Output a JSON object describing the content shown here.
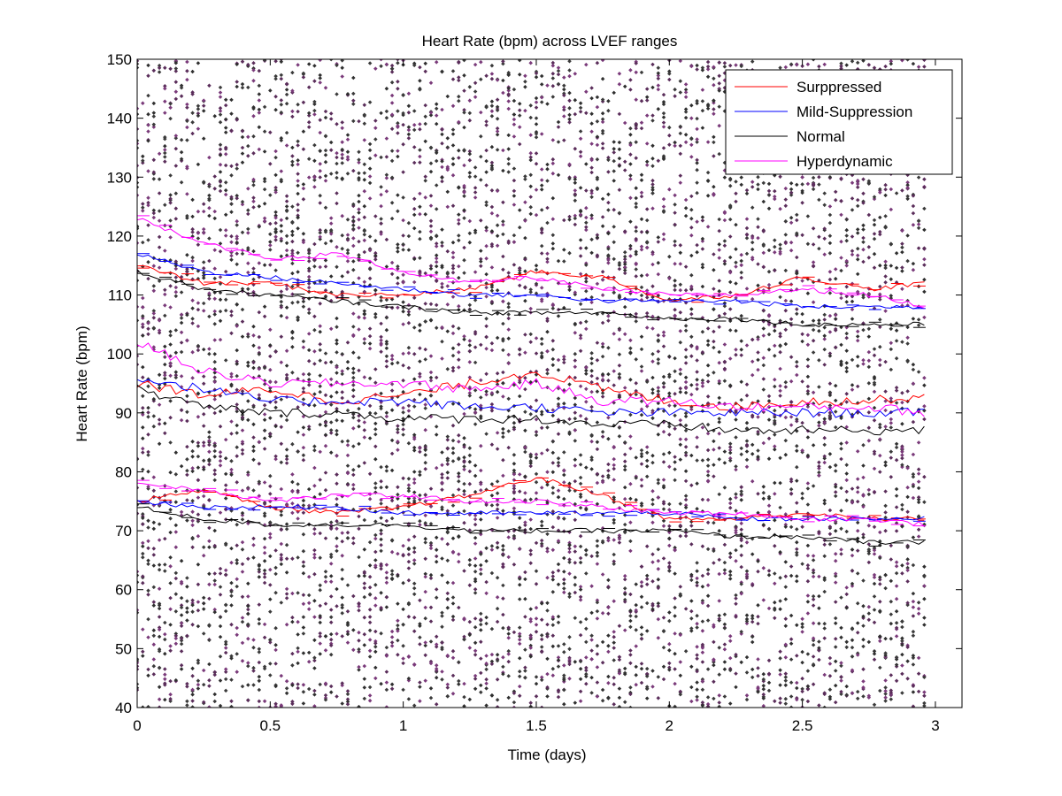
{
  "chart_data": {
    "type": "line",
    "title": "Heart Rate (bpm) across LVEF ranges",
    "xlabel": "Time (days)",
    "ylabel": "Heart Rate (bpm)",
    "xlim": [
      0,
      3.1
    ],
    "ylim": [
      40,
      150
    ],
    "xticks": [
      0,
      0.5,
      1,
      1.5,
      2,
      2.5,
      3
    ],
    "xtick_labels": [
      "0",
      "0.5",
      "1",
      "1.5",
      "2",
      "2.5",
      "3"
    ],
    "yticks": [
      40,
      50,
      60,
      70,
      80,
      90,
      100,
      110,
      120,
      130,
      140,
      150
    ],
    "ytick_labels": [
      "40",
      "50",
      "60",
      "70",
      "80",
      "90",
      "100",
      "110",
      "120",
      "130",
      "140",
      "150"
    ],
    "legend_position": "top-right",
    "grid": false,
    "x": [
      0,
      0.25,
      0.5,
      0.75,
      1,
      1.25,
      1.5,
      1.75,
      2,
      2.25,
      2.5,
      2.75,
      2.97
    ],
    "series": [
      {
        "name": "Surppressed",
        "color": "#ff0000",
        "upper": [
          115,
          112,
          112,
          110,
          110,
          111,
          114,
          113,
          109,
          110,
          113,
          111,
          112
        ],
        "median": [
          95,
          93,
          94,
          92,
          93,
          95,
          97,
          94,
          92,
          91,
          92,
          92,
          93
        ],
        "lower": [
          75,
          77,
          74,
          73,
          74,
          76,
          79,
          76,
          72,
          72,
          73,
          72,
          72
        ]
      },
      {
        "name": "Mild-Suppression",
        "color": "#0000ff",
        "upper": [
          117,
          114,
          113,
          112,
          111,
          110,
          110,
          109,
          109,
          109,
          108,
          108,
          108
        ],
        "median": [
          96,
          94,
          92,
          92,
          92,
          91,
          91,
          90,
          90,
          90,
          90,
          90,
          90
        ],
        "lower": [
          75,
          74,
          74,
          74,
          73,
          73,
          73,
          73,
          73,
          72,
          72,
          72,
          72
        ]
      },
      {
        "name": "Normal",
        "color": "#000000",
        "upper": [
          114,
          111,
          110,
          109,
          108,
          107,
          107,
          107,
          106,
          106,
          105,
          105,
          105
        ],
        "median": [
          94,
          91,
          90,
          90,
          89,
          89,
          89,
          88,
          88,
          87,
          87,
          87,
          87
        ],
        "lower": [
          74,
          72,
          71,
          71,
          71,
          70,
          70,
          70,
          70,
          69,
          69,
          68,
          68
        ]
      },
      {
        "name": "Hyperdynamic",
        "color": "#ff00ff",
        "upper": [
          123,
          119,
          116,
          117,
          114,
          112,
          113,
          111,
          110,
          110,
          111,
          110,
          108
        ],
        "median": [
          102,
          97,
          95,
          95,
          95,
          94,
          95,
          92,
          92,
          91,
          91,
          91,
          90
        ],
        "lower": [
          78,
          77,
          75,
          76,
          76,
          75,
          75,
          74,
          73,
          73,
          72,
          72,
          71
        ]
      }
    ]
  }
}
